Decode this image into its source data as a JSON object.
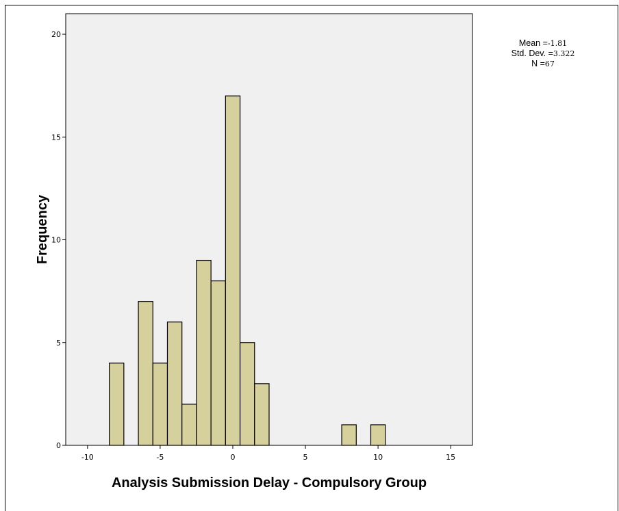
{
  "stats": {
    "mean_label": "Mean",
    "mean_value": "-1.81",
    "sd_label": "Std. Dev.",
    "sd_value": "3.322",
    "n_label": "N",
    "n_value": "67"
  },
  "chart_data": {
    "type": "bar",
    "subtype": "histogram",
    "xlabel": "Analysis Submission Delay - Compulsory Group",
    "ylabel": "Frequency",
    "xlim": [
      -11.5,
      16.5
    ],
    "ylim": [
      0,
      21
    ],
    "x_ticks": [
      -10,
      -5,
      0,
      5,
      10,
      15
    ],
    "y_ticks": [
      0,
      5,
      10,
      15,
      20
    ],
    "bin_width": 1,
    "bins": [
      {
        "start": -8.5,
        "end": -7.5,
        "count": 4
      },
      {
        "start": -6.5,
        "end": -5.5,
        "count": 7
      },
      {
        "start": -5.5,
        "end": -4.5,
        "count": 4
      },
      {
        "start": -4.5,
        "end": -3.5,
        "count": 6
      },
      {
        "start": -3.5,
        "end": -2.5,
        "count": 2
      },
      {
        "start": -2.5,
        "end": -1.5,
        "count": 9
      },
      {
        "start": -1.5,
        "end": -0.5,
        "count": 8
      },
      {
        "start": -0.5,
        "end": 0.5,
        "count": 17
      },
      {
        "start": 0.5,
        "end": 1.5,
        "count": 5
      },
      {
        "start": 1.5,
        "end": 2.5,
        "count": 3
      },
      {
        "start": 7.5,
        "end": 8.5,
        "count": 1
      },
      {
        "start": 9.5,
        "end": 10.5,
        "count": 1
      }
    ],
    "colors": {
      "plot_background": "#f0f0f0",
      "bar_fill": "#d6d09c",
      "bar_stroke": "#000000"
    }
  }
}
